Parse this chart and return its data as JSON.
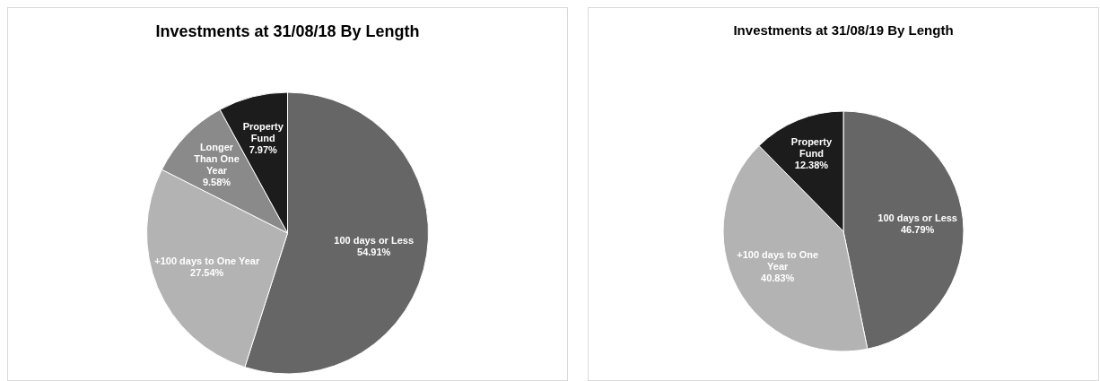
{
  "chart_data": [
    {
      "type": "pie",
      "title": "Investments at 31/08/18 By Length",
      "categories": [
        "100 days or Less",
        "+100 days to One Year",
        "Longer Than One Year",
        "Property Fund"
      ],
      "values": [
        54.91,
        27.54,
        9.58,
        7.97
      ],
      "value_labels": [
        "54.91%",
        "27.54%",
        "9.58%",
        "7.97%"
      ],
      "colors": [
        "#666666",
        "#b3b3b3",
        "#8a8a8a",
        "#1c1c1c"
      ],
      "legend": false
    },
    {
      "type": "pie",
      "title": "Investments at 31/08/19 By Length",
      "categories": [
        "100 days or Less",
        "+100 days to One Year",
        "Property Fund"
      ],
      "values": [
        46.79,
        40.83,
        12.38
      ],
      "value_labels": [
        "46.79%",
        "40.83%",
        "12.38%"
      ],
      "colors": [
        "#666666",
        "#b3b3b3",
        "#1c1c1c"
      ],
      "legend": false
    }
  ]
}
